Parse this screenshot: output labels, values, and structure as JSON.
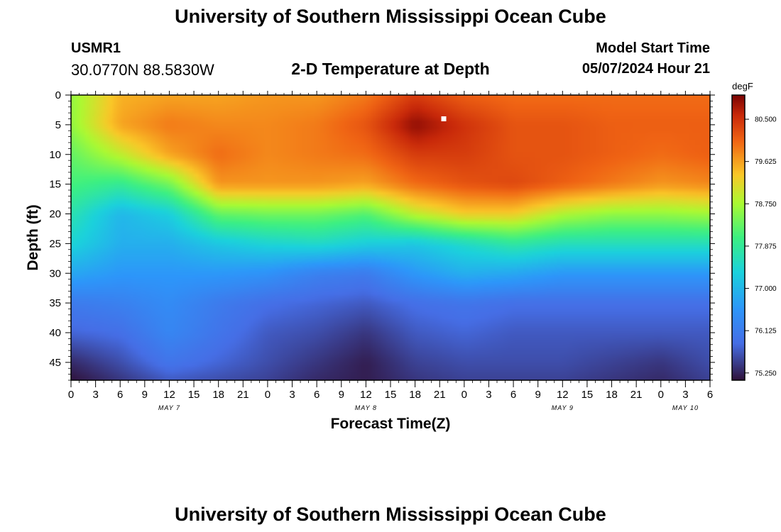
{
  "header": {
    "title": "University of Southern Mississippi Ocean Cube",
    "station_id": "USMR1",
    "station_coords": "30.0770N  88.5830W",
    "plot_title": "2-D Temperature at Depth",
    "model_start_label": "Model Start Time",
    "model_start_value": "05/07/2024 Hour 21"
  },
  "footer": {
    "title": "University of Southern Mississippi Ocean Cube"
  },
  "chart_data": {
    "type": "heatmap",
    "title": "2-D Temperature at Depth",
    "xlabel": "Forecast Time(Z)",
    "ylabel": "Depth (ft)",
    "colorbar_unit": "degF",
    "x_range_hours": [
      0,
      78
    ],
    "x_tick_labels": [
      "0",
      "3",
      "6",
      "9",
      "12",
      "15",
      "18",
      "21",
      "0",
      "3",
      "6",
      "9",
      "12",
      "15",
      "18",
      "21",
      "0",
      "3",
      "6",
      "9",
      "12",
      "15",
      "18",
      "21",
      "0",
      "3",
      "6"
    ],
    "date_labels": [
      {
        "label": "MAY 7",
        "hour": 12
      },
      {
        "label": "MAY 8",
        "hour": 36
      },
      {
        "label": "MAY 9",
        "hour": 60
      },
      {
        "label": "MAY 10",
        "hour": 75
      }
    ],
    "ylim": [
      0,
      48
    ],
    "y_ticks": [
      0,
      5,
      10,
      15,
      20,
      25,
      30,
      35,
      40,
      45
    ],
    "colorbar_range": [
      75.1,
      81.0
    ],
    "colorbar_ticks": [
      "75.250",
      "76.125",
      "77.000",
      "77.875",
      "78.750",
      "79.625",
      "80.500"
    ],
    "marker": {
      "hour": 45.5,
      "depth": 4
    },
    "hours": [
      0,
      6,
      12,
      18,
      24,
      30,
      36,
      42,
      48,
      54,
      60,
      66,
      72,
      78
    ],
    "depths": [
      0,
      5,
      10,
      15,
      20,
      25,
      30,
      35,
      40,
      45,
      48
    ],
    "temperature_degF": [
      [
        78.6,
        79.5,
        79.6,
        79.6,
        79.7,
        79.7,
        79.9,
        80.4,
        80.1,
        80.0,
        80.0,
        80.0,
        80.0,
        80.0
      ],
      [
        78.6,
        79.6,
        79.9,
        79.8,
        79.8,
        79.9,
        80.2,
        80.9,
        80.5,
        80.2,
        80.2,
        80.1,
        80.1,
        80.1
      ],
      [
        78.3,
        78.9,
        79.6,
        80.0,
        79.8,
        79.9,
        80.0,
        80.4,
        80.4,
        80.2,
        80.2,
        80.1,
        80.0,
        80.1
      ],
      [
        78.1,
        77.9,
        78.4,
        79.7,
        79.7,
        79.7,
        79.6,
        80.0,
        80.2,
        80.3,
        80.1,
        79.9,
        79.7,
        79.8
      ],
      [
        77.7,
        77.0,
        77.3,
        78.3,
        78.4,
        78.4,
        78.2,
        78.9,
        79.3,
        79.3,
        78.8,
        78.6,
        78.6,
        78.7
      ],
      [
        77.4,
        76.9,
        76.9,
        77.2,
        77.4,
        77.5,
        77.3,
        77.2,
        77.5,
        77.8,
        77.6,
        77.6,
        77.6,
        77.6
      ],
      [
        76.8,
        76.6,
        76.6,
        76.6,
        76.5,
        76.2,
        76.1,
        76.6,
        76.9,
        76.8,
        76.6,
        76.6,
        76.6,
        76.6
      ],
      [
        76.1,
        76.2,
        76.4,
        76.1,
        75.9,
        75.8,
        75.7,
        75.9,
        76.0,
        75.9,
        75.9,
        75.9,
        75.9,
        75.9
      ],
      [
        75.8,
        75.9,
        76.3,
        76.0,
        75.7,
        75.6,
        75.4,
        75.7,
        75.8,
        75.7,
        75.7,
        75.7,
        75.7,
        75.7
      ],
      [
        75.3,
        75.6,
        76.0,
        75.8,
        75.6,
        75.4,
        75.2,
        75.5,
        75.6,
        75.6,
        75.6,
        75.5,
        75.4,
        75.6
      ],
      [
        75.1,
        75.4,
        75.7,
        75.6,
        75.5,
        75.3,
        75.2,
        75.4,
        75.5,
        75.5,
        75.5,
        75.4,
        75.3,
        75.5
      ]
    ]
  }
}
